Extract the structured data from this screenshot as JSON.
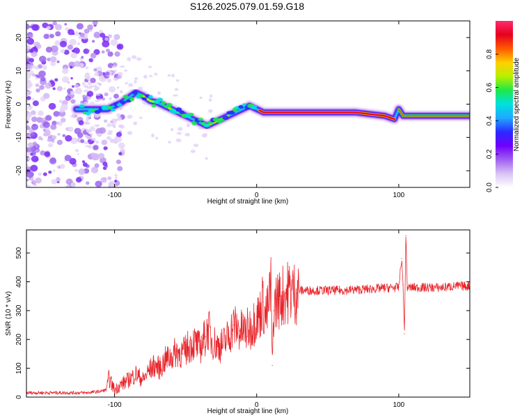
{
  "title": "S126.2025.079.01.59.G18",
  "colors": {
    "snr_line": "#e8242a",
    "colormap": [
      "#ffffff",
      "#d9c3f5",
      "#a060f0",
      "#7000ff",
      "#2a2aff",
      "#1fa8ff",
      "#00e0e0",
      "#1ee84a",
      "#b8f000",
      "#ffd000",
      "#ff5a00",
      "#e60020",
      "#ff2a6e"
    ]
  },
  "chart_data": [
    {
      "type": "heatmap",
      "xlabel": "Height of straight line (km)",
      "ylabel": "Frequency (Hz)",
      "xlim": [
        -162,
        150
      ],
      "ylim": [
        -25,
        25
      ],
      "xticks": [
        -100,
        0,
        100
      ],
      "yticks": [
        -20,
        -10,
        0,
        10,
        20
      ],
      "xtick_labels": [
        "-100",
        "0",
        "100"
      ],
      "ytick_labels": [
        "-20",
        "-10",
        "0",
        "10",
        "20"
      ],
      "grid": false,
      "colorbar": {
        "label": "Normalized spectral amplitude",
        "range": [
          0,
          1
        ],
        "ticks": [
          0.0,
          0.2,
          0.4,
          0.6,
          0.8
        ],
        "tick_labels": [
          "0.0",
          "0.2",
          "0.4",
          "0.6",
          "0.8"
        ]
      },
      "ridge": {
        "x": [
          -125,
          -120,
          -115,
          -110,
          -105,
          -100,
          -95,
          -90,
          -85,
          -80,
          -75,
          -70,
          -65,
          -60,
          -55,
          -50,
          -45,
          -40,
          -35,
          -30,
          -25,
          -20,
          -15,
          -10,
          -5,
          0,
          5,
          10,
          20,
          30,
          50,
          70,
          90,
          97,
          100,
          103,
          110,
          130,
          150
        ],
        "y": [
          -1.5,
          -1.5,
          -1.5,
          -1.5,
          -1.5,
          -0.5,
          0.5,
          2,
          3.5,
          2.5,
          1,
          0.5,
          -0.5,
          -1.5,
          -2.5,
          -3.5,
          -4.5,
          -5.5,
          -6.5,
          -5.5,
          -4.5,
          -3.5,
          -2.5,
          -1.5,
          -0.5,
          -1.5,
          -2.5,
          -2.5,
          -2.5,
          -2.5,
          -2.5,
          -2.5,
          -3.5,
          -4.5,
          -1.5,
          -3.5,
          -3.5,
          -3.5,
          -3.5
        ]
      }
    },
    {
      "type": "line",
      "xlabel": "Height of straight line (km)",
      "ylabel": "SNR (10 * v/v)",
      "xlim": [
        -162,
        150
      ],
      "ylim": [
        0,
        580
      ],
      "xticks": [
        -100,
        0,
        100
      ],
      "yticks": [
        0,
        100,
        200,
        300,
        400,
        500
      ],
      "xtick_labels": [
        "-100",
        "0",
        "100"
      ],
      "ytick_labels": [
        "0",
        "100",
        "200",
        "300",
        "400",
        "500"
      ],
      "grid": false,
      "series": [
        {
          "x": [
            -162,
            -150,
            -140,
            -130,
            -120,
            -110,
            -106,
            -104,
            -100,
            -95,
            -90,
            -85,
            -80,
            -76,
            -72,
            -68,
            -64,
            -60,
            -56,
            -52,
            -48,
            -44,
            -40,
            -36,
            -34,
            -32,
            -28,
            -24,
            -20,
            -16,
            -12,
            -8,
            -4,
            0,
            2,
            4,
            6,
            8,
            10,
            11,
            12,
            14,
            16,
            18,
            20,
            24,
            28,
            30,
            40,
            60,
            80,
            95,
            100,
            102,
            103,
            104,
            105,
            106,
            107,
            110,
            120,
            130,
            140,
            150
          ],
          "y": [
            15,
            15,
            15,
            15,
            15,
            20,
            25,
            65,
            25,
            45,
            60,
            80,
            60,
            90,
            110,
            100,
            130,
            140,
            160,
            150,
            175,
            190,
            170,
            210,
            240,
            200,
            180,
            180,
            210,
            250,
            230,
            230,
            240,
            280,
            280,
            330,
            280,
            300,
            390,
            110,
            300,
            340,
            340,
            350,
            360,
            370,
            360,
            370,
            370,
            370,
            375,
            380,
            380,
            480,
            390,
            220,
            560,
            380,
            380,
            380,
            380,
            380,
            385,
            385
          ]
        }
      ]
    }
  ]
}
